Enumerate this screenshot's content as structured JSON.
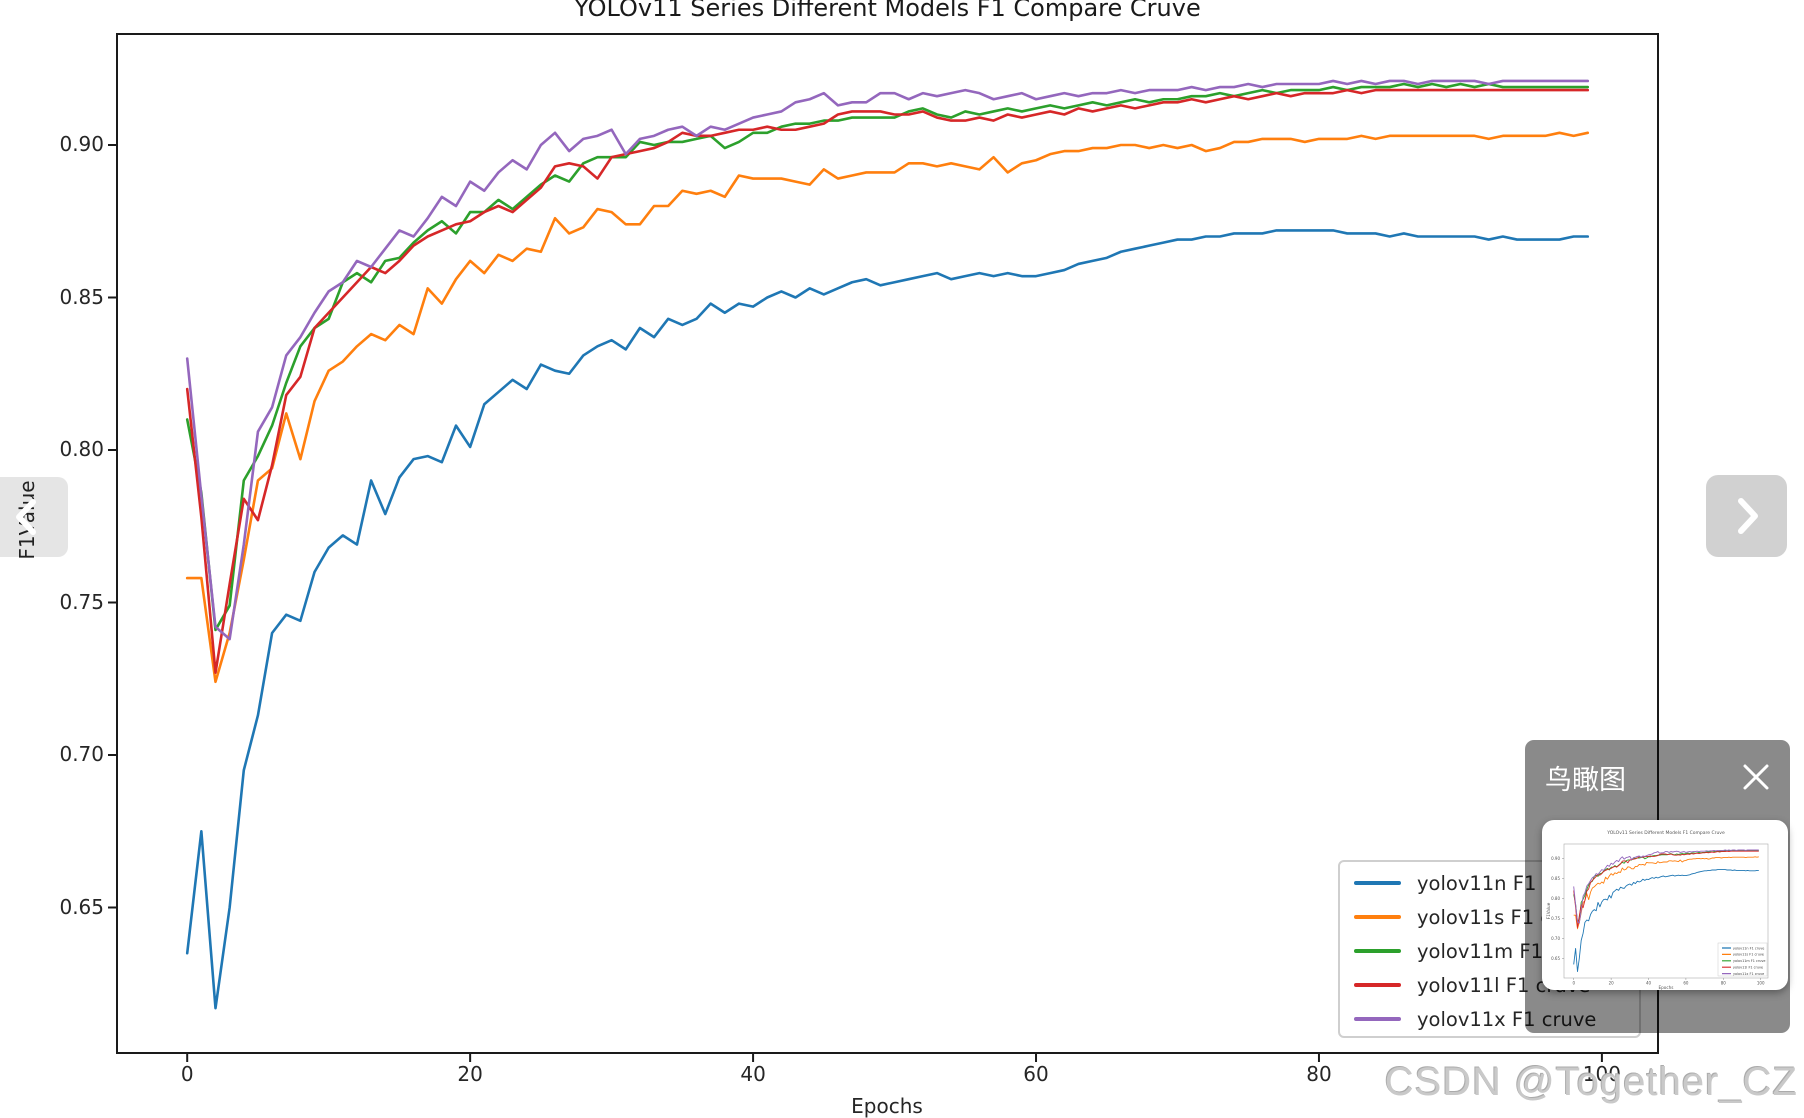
{
  "viewer": {
    "watermark": "CSDN @Together_CZ",
    "birdseye": {
      "title": "鸟瞰图"
    }
  },
  "chart_data": {
    "type": "line",
    "title": "YOLOv11 Series Different Models F1 Compare Cruve",
    "xlabel": "Epochs",
    "ylabel": "F1Value",
    "x_ticks": [
      0,
      20,
      40,
      60,
      80,
      100
    ],
    "y_tick_labels": [
      "0.90",
      "0.85",
      "0.80",
      "0.75",
      "0.70",
      "0.65"
    ],
    "y_tick_values": [
      0.9,
      0.85,
      0.8,
      0.75,
      0.7,
      0.65
    ],
    "xlim": [
      -5.2,
      103.9
    ],
    "ylim": [
      0.601,
      0.936
    ],
    "grid": false,
    "legend_position": "lower right",
    "x": [
      0,
      1,
      2,
      3,
      4,
      5,
      6,
      7,
      8,
      9,
      10,
      11,
      12,
      13,
      14,
      15,
      16,
      17,
      18,
      19,
      20,
      21,
      22,
      23,
      24,
      25,
      26,
      27,
      28,
      29,
      30,
      31,
      32,
      33,
      34,
      35,
      36,
      37,
      38,
      39,
      40,
      41,
      42,
      43,
      44,
      45,
      46,
      47,
      48,
      49,
      50,
      51,
      52,
      53,
      54,
      55,
      56,
      57,
      58,
      59,
      60,
      61,
      62,
      63,
      64,
      65,
      66,
      67,
      68,
      69,
      70,
      71,
      72,
      73,
      74,
      75,
      76,
      77,
      78,
      79,
      80,
      81,
      82,
      83,
      84,
      85,
      86,
      87,
      88,
      89,
      90,
      91,
      92,
      93,
      94,
      95,
      96,
      97,
      98,
      99
    ],
    "series": [
      {
        "name": "yolov11n F1 cruve",
        "color": "#1f77b4",
        "values": [
          0.635,
          0.675,
          0.617,
          0.65,
          0.695,
          0.713,
          0.74,
          0.746,
          0.744,
          0.76,
          0.768,
          0.772,
          0.769,
          0.79,
          0.779,
          0.791,
          0.797,
          0.798,
          0.796,
          0.808,
          0.801,
          0.815,
          0.819,
          0.823,
          0.82,
          0.828,
          0.826,
          0.825,
          0.831,
          0.834,
          0.836,
          0.833,
          0.84,
          0.837,
          0.843,
          0.841,
          0.843,
          0.848,
          0.845,
          0.848,
          0.847,
          0.85,
          0.852,
          0.85,
          0.853,
          0.851,
          0.853,
          0.855,
          0.856,
          0.854,
          0.855,
          0.856,
          0.857,
          0.858,
          0.856,
          0.857,
          0.858,
          0.857,
          0.858,
          0.857,
          0.857,
          0.858,
          0.859,
          0.861,
          0.862,
          0.863,
          0.865,
          0.866,
          0.867,
          0.868,
          0.869,
          0.869,
          0.87,
          0.87,
          0.871,
          0.871,
          0.871,
          0.872,
          0.872,
          0.872,
          0.872,
          0.872,
          0.871,
          0.871,
          0.871,
          0.87,
          0.871,
          0.87,
          0.87,
          0.87,
          0.87,
          0.87,
          0.869,
          0.87,
          0.869,
          0.869,
          0.869,
          0.869,
          0.87,
          0.87
        ]
      },
      {
        "name": "yolov11s F1 cruve",
        "color": "#ff7f0e",
        "values": [
          0.758,
          0.758,
          0.724,
          0.74,
          0.764,
          0.79,
          0.794,
          0.812,
          0.797,
          0.816,
          0.826,
          0.829,
          0.834,
          0.838,
          0.836,
          0.841,
          0.838,
          0.853,
          0.848,
          0.856,
          0.862,
          0.858,
          0.864,
          0.862,
          0.866,
          0.865,
          0.876,
          0.871,
          0.873,
          0.879,
          0.878,
          0.874,
          0.874,
          0.88,
          0.88,
          0.885,
          0.884,
          0.885,
          0.883,
          0.89,
          0.889,
          0.889,
          0.889,
          0.888,
          0.887,
          0.892,
          0.889,
          0.89,
          0.891,
          0.891,
          0.891,
          0.894,
          0.894,
          0.893,
          0.894,
          0.893,
          0.892,
          0.896,
          0.891,
          0.894,
          0.895,
          0.897,
          0.898,
          0.898,
          0.899,
          0.899,
          0.9,
          0.9,
          0.899,
          0.9,
          0.899,
          0.9,
          0.898,
          0.899,
          0.901,
          0.901,
          0.902,
          0.902,
          0.902,
          0.901,
          0.902,
          0.902,
          0.902,
          0.903,
          0.902,
          0.903,
          0.903,
          0.903,
          0.903,
          0.903,
          0.903,
          0.903,
          0.902,
          0.903,
          0.903,
          0.903,
          0.903,
          0.904,
          0.903,
          0.904
        ]
      },
      {
        "name": "yolov11m F1 cruve",
        "color": "#2ca02c",
        "values": [
          0.81,
          0.786,
          0.741,
          0.749,
          0.79,
          0.798,
          0.808,
          0.822,
          0.834,
          0.84,
          0.843,
          0.855,
          0.858,
          0.855,
          0.862,
          0.863,
          0.868,
          0.872,
          0.875,
          0.871,
          0.878,
          0.878,
          0.882,
          0.879,
          0.883,
          0.887,
          0.89,
          0.888,
          0.894,
          0.896,
          0.896,
          0.896,
          0.901,
          0.9,
          0.901,
          0.901,
          0.902,
          0.903,
          0.899,
          0.901,
          0.904,
          0.904,
          0.906,
          0.907,
          0.907,
          0.908,
          0.908,
          0.909,
          0.909,
          0.909,
          0.909,
          0.911,
          0.912,
          0.91,
          0.909,
          0.911,
          0.91,
          0.911,
          0.912,
          0.911,
          0.912,
          0.913,
          0.912,
          0.913,
          0.914,
          0.913,
          0.914,
          0.915,
          0.914,
          0.915,
          0.915,
          0.916,
          0.916,
          0.917,
          0.916,
          0.917,
          0.918,
          0.917,
          0.918,
          0.918,
          0.918,
          0.919,
          0.918,
          0.919,
          0.919,
          0.919,
          0.92,
          0.919,
          0.92,
          0.919,
          0.92,
          0.919,
          0.92,
          0.919,
          0.919,
          0.919,
          0.919,
          0.919,
          0.919,
          0.919
        ]
      },
      {
        "name": "yolov11l F1 cruve",
        "color": "#d62728",
        "values": [
          0.82,
          0.778,
          0.727,
          0.756,
          0.784,
          0.777,
          0.795,
          0.818,
          0.824,
          0.84,
          0.845,
          0.85,
          0.855,
          0.86,
          0.858,
          0.862,
          0.867,
          0.87,
          0.872,
          0.874,
          0.875,
          0.878,
          0.88,
          0.878,
          0.882,
          0.886,
          0.893,
          0.894,
          0.893,
          0.889,
          0.896,
          0.897,
          0.898,
          0.899,
          0.901,
          0.904,
          0.903,
          0.903,
          0.904,
          0.905,
          0.905,
          0.906,
          0.905,
          0.905,
          0.906,
          0.907,
          0.91,
          0.911,
          0.911,
          0.911,
          0.91,
          0.91,
          0.911,
          0.909,
          0.908,
          0.908,
          0.909,
          0.908,
          0.91,
          0.909,
          0.91,
          0.911,
          0.91,
          0.912,
          0.911,
          0.912,
          0.913,
          0.912,
          0.913,
          0.914,
          0.914,
          0.915,
          0.914,
          0.915,
          0.916,
          0.915,
          0.916,
          0.917,
          0.916,
          0.917,
          0.917,
          0.917,
          0.918,
          0.917,
          0.918,
          0.918,
          0.918,
          0.918,
          0.918,
          0.918,
          0.918,
          0.918,
          0.918,
          0.918,
          0.918,
          0.918,
          0.918,
          0.918,
          0.918,
          0.918
        ]
      },
      {
        "name": "yolov11x F1 cruve",
        "color": "#9467bd",
        "values": [
          0.83,
          0.785,
          0.742,
          0.738,
          0.769,
          0.806,
          0.814,
          0.831,
          0.837,
          0.845,
          0.852,
          0.855,
          0.862,
          0.86,
          0.866,
          0.872,
          0.87,
          0.876,
          0.883,
          0.88,
          0.888,
          0.885,
          0.891,
          0.895,
          0.892,
          0.9,
          0.904,
          0.898,
          0.902,
          0.903,
          0.905,
          0.897,
          0.902,
          0.903,
          0.905,
          0.906,
          0.903,
          0.906,
          0.905,
          0.907,
          0.909,
          0.91,
          0.911,
          0.914,
          0.915,
          0.917,
          0.913,
          0.914,
          0.914,
          0.917,
          0.917,
          0.915,
          0.917,
          0.916,
          0.917,
          0.918,
          0.917,
          0.915,
          0.916,
          0.917,
          0.915,
          0.916,
          0.917,
          0.916,
          0.917,
          0.917,
          0.918,
          0.917,
          0.918,
          0.918,
          0.918,
          0.919,
          0.918,
          0.919,
          0.919,
          0.92,
          0.919,
          0.92,
          0.92,
          0.92,
          0.92,
          0.921,
          0.92,
          0.921,
          0.92,
          0.921,
          0.921,
          0.92,
          0.921,
          0.921,
          0.921,
          0.921,
          0.92,
          0.921,
          0.921,
          0.921,
          0.921,
          0.921,
          0.921,
          0.921
        ]
      }
    ]
  }
}
